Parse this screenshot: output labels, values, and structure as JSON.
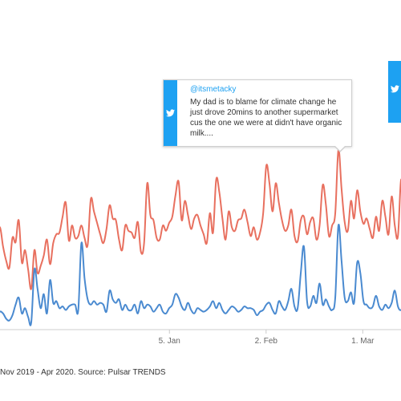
{
  "colors": {
    "series_1": "#e8705f",
    "series_2": "#4a8ad0",
    "twitter": "#1da1f2",
    "axis": "#cccccc"
  },
  "tooltip": {
    "handle": "@itsmetacky",
    "text": "My dad is to blame for climate change he just drove 20mins to another supermarket cus the one we were at didn't have organic milk....",
    "icon": "twitter-bird-icon"
  },
  "tooltip_partial": {
    "icon": "twitter-bird-icon"
  },
  "source_text": "Nov 2019 - Apr 2020. Source: Pulsar TRENDS",
  "chart_data": {
    "type": "line",
    "title": "",
    "xlabel": "",
    "ylabel": "",
    "x_ticks": [
      {
        "label": "5. Jan",
        "day": 66
      },
      {
        "label": "2. Feb",
        "day": 94
      },
      {
        "label": "1. Mar",
        "day": 122
      }
    ],
    "x_range_days": [
      16,
      134
    ],
    "y_range": [
      0,
      300
    ],
    "grid": false,
    "legend": "none",
    "series": [
      {
        "color": "#e8705f",
        "values": [
          95,
          110,
          88,
          72,
          64,
          98,
          93,
          118,
          70,
          84,
          62,
          40,
          84,
          58,
          66,
          78,
          96,
          68,
          92,
          102,
          104,
          122,
          138,
          95,
          112,
          98,
          100,
          112,
          98,
          90,
          142,
          128,
          115,
          102,
          92,
          108,
          135,
          120,
          118,
          96,
          84,
          112,
          106,
          104,
          98,
          116,
          82,
          92,
          160,
          124,
          118,
          98,
          96,
          112,
          106,
          115,
          122,
          146,
          162,
          118,
          140,
          124,
          108,
          120,
          124,
          112,
          102,
          92,
          126,
          104,
          164,
          150,
          120,
          96,
          128,
          110,
          106,
          118,
          120,
          130,
          116,
          100,
          110,
          96,
          104,
          126,
          180,
          160,
          128,
          160,
          138,
          118,
          106,
          112,
          130,
          100,
          94,
          118,
          122,
          102,
          116,
          120,
          96,
          112,
          158,
          136,
          100,
          112,
          126,
          198,
          154,
          116,
          106,
          140,
          120,
          152,
          128,
          114,
          120,
          108,
          98,
          122,
          106,
          140,
          122,
          102,
          145,
          112,
          100,
          164,
          128
        ]
      },
      {
        "color": "#4a8ad0",
        "values": [
          8,
          14,
          12,
          6,
          4,
          10,
          22,
          30,
          12,
          18,
          8,
          2,
          62,
          40,
          18,
          34,
          12,
          50,
          24,
          26,
          18,
          20,
          16,
          20,
          22,
          22,
          16,
          92,
          52,
          28,
          22,
          26,
          22,
          24,
          22,
          14,
          38,
          28,
          24,
          28,
          16,
          22,
          16,
          16,
          22,
          12,
          26,
          18,
          22,
          20,
          14,
          18,
          22,
          14,
          12,
          18,
          22,
          34,
          30,
          20,
          16,
          24,
          16,
          12,
          18,
          16,
          14,
          16,
          20,
          26,
          18,
          24,
          16,
          12,
          16,
          20,
          18,
          14,
          16,
          20,
          18,
          18,
          16,
          10,
          14,
          16,
          22,
          24,
          16,
          12,
          26,
          20,
          16,
          26,
          40,
          20,
          18,
          58,
          88,
          26,
          20,
          32,
          24,
          46,
          22,
          28,
          20,
          16,
          30,
          112,
          72,
          30,
          26,
          36,
          24,
          70,
          58,
          26,
          22,
          18,
          20,
          32,
          20,
          16,
          22,
          18,
          24,
          38,
          20,
          16,
          24
        ]
      }
    ]
  }
}
